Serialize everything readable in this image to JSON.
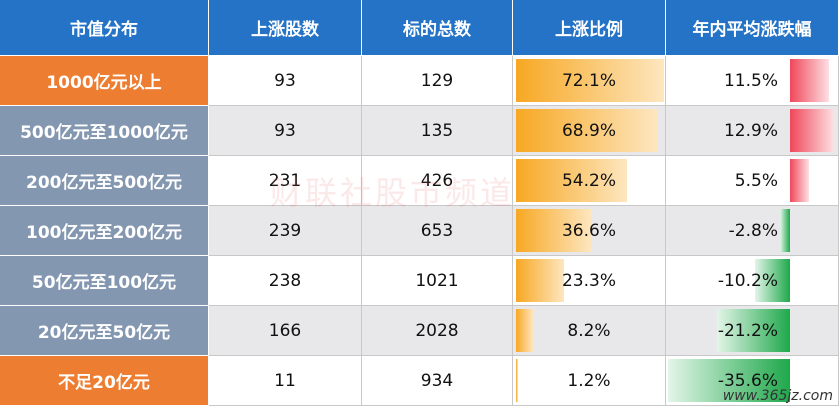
{
  "header": [
    "市值分布",
    "上涨股数",
    "标的总数",
    "上涨比例",
    "年内平均涨跌幅"
  ],
  "rows": [
    {
      "label": "1000亿元以上",
      "up": 93,
      "total": 129,
      "ratio": 72.1,
      "ratio_label": "72.1%",
      "avg": 11.5,
      "avg_label": "11.5%"
    },
    {
      "label": "500亿元至1000亿元",
      "up": 93,
      "total": 135,
      "ratio": 68.9,
      "ratio_label": "68.9%",
      "avg": 12.9,
      "avg_label": "12.9%"
    },
    {
      "label": "200亿元至500亿元",
      "up": 231,
      "total": 426,
      "ratio": 54.2,
      "ratio_label": "54.2%",
      "avg": 5.5,
      "avg_label": "5.5%"
    },
    {
      "label": "100亿元至200亿元",
      "up": 239,
      "total": 653,
      "ratio": 36.6,
      "ratio_label": "36.6%",
      "avg": -2.8,
      "avg_label": "-2.8%"
    },
    {
      "label": "50亿元至100亿元",
      "up": 238,
      "total": 1021,
      "ratio": 23.3,
      "ratio_label": "23.3%",
      "avg": -10.2,
      "avg_label": "-10.2%"
    },
    {
      "label": "20亿元至50亿元",
      "up": 166,
      "total": 2028,
      "ratio": 8.2,
      "ratio_label": "8.2%",
      "avg": -21.2,
      "avg_label": "-21.2%"
    },
    {
      "label": "不足20亿元",
      "up": 11,
      "total": 934,
      "ratio": 1.2,
      "ratio_label": "1.2%",
      "avg": -35.6,
      "avg_label": "-35.6%"
    }
  ],
  "watermark": "财联社股市频道",
  "site": "www.365jz.com"
}
